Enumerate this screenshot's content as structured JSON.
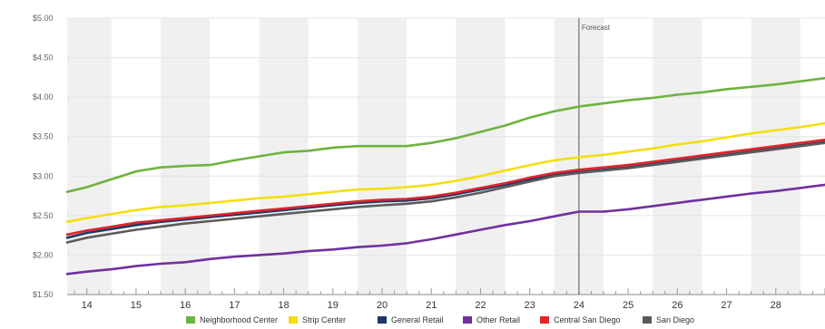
{
  "chart_data": {
    "type": "line",
    "title": "",
    "xlabel": "",
    "ylabel": "",
    "categories": [
      "14",
      "15",
      "16",
      "17",
      "18",
      "19",
      "20",
      "21",
      "22",
      "23",
      "24",
      "25",
      "26",
      "27",
      "28"
    ],
    "x_range": [
      13.6,
      29.0
    ],
    "ylim": [
      1.5,
      5.0
    ],
    "yticks": [
      "$1.50",
      "$2.00",
      "$2.50",
      "$3.00",
      "$3.50",
      "$4.00",
      "$4.50",
      "$5.00"
    ],
    "ytick_values": [
      1.5,
      2.0,
      2.5,
      3.0,
      3.5,
      4.0,
      4.5,
      5.0
    ],
    "grid": "alternating vertical bands",
    "legend_position": "bottom",
    "annotation": {
      "label": "Forecast",
      "x": 24
    },
    "x": [
      13.6,
      14,
      14.5,
      15,
      15.5,
      16,
      16.5,
      17,
      17.5,
      18,
      18.5,
      19,
      19.5,
      20,
      20.5,
      21,
      21.5,
      22,
      22.5,
      23,
      23.5,
      24,
      24.5,
      25,
      25.5,
      26,
      26.5,
      27,
      27.5,
      28,
      28.5,
      29
    ],
    "series": [
      {
        "name": "Neighborhood Center",
        "color": "#6db33f",
        "values": [
          2.8,
          2.86,
          2.96,
          3.06,
          3.11,
          3.13,
          3.14,
          3.2,
          3.25,
          3.3,
          3.32,
          3.36,
          3.38,
          3.38,
          3.38,
          3.42,
          3.48,
          3.56,
          3.64,
          3.74,
          3.82,
          3.88,
          3.92,
          3.96,
          3.99,
          4.03,
          4.06,
          4.1,
          4.13,
          4.16,
          4.2,
          4.24
        ]
      },
      {
        "name": "Strip Center",
        "color": "#f5de0c",
        "values": [
          2.42,
          2.47,
          2.52,
          2.57,
          2.61,
          2.63,
          2.66,
          2.69,
          2.72,
          2.74,
          2.77,
          2.8,
          2.83,
          2.84,
          2.86,
          2.89,
          2.94,
          3.0,
          3.07,
          3.14,
          3.2,
          3.24,
          3.27,
          3.31,
          3.35,
          3.4,
          3.44,
          3.49,
          3.54,
          3.58,
          3.62,
          3.67
        ]
      },
      {
        "name": "General Retail",
        "color": "#1f3864",
        "values": [
          2.22,
          2.28,
          2.33,
          2.38,
          2.42,
          2.45,
          2.48,
          2.51,
          2.54,
          2.57,
          2.6,
          2.63,
          2.66,
          2.68,
          2.69,
          2.72,
          2.77,
          2.83,
          2.89,
          2.96,
          3.02,
          3.05,
          3.08,
          3.11,
          3.15,
          3.19,
          3.23,
          3.27,
          3.31,
          3.35,
          3.39,
          3.43
        ]
      },
      {
        "name": "Other Retail",
        "color": "#7030a0",
        "values": [
          1.76,
          1.79,
          1.82,
          1.86,
          1.89,
          1.91,
          1.95,
          1.98,
          2.0,
          2.02,
          2.05,
          2.07,
          2.1,
          2.12,
          2.15,
          2.2,
          2.26,
          2.32,
          2.38,
          2.43,
          2.49,
          2.55,
          2.55,
          2.58,
          2.62,
          2.66,
          2.7,
          2.74,
          2.78,
          2.81,
          2.85,
          2.89
        ]
      },
      {
        "name": "Central San Diego",
        "color": "#e0242b",
        "values": [
          2.26,
          2.31,
          2.36,
          2.41,
          2.44,
          2.47,
          2.5,
          2.53,
          2.56,
          2.59,
          2.62,
          2.65,
          2.68,
          2.7,
          2.71,
          2.74,
          2.79,
          2.85,
          2.91,
          2.98,
          3.04,
          3.08,
          3.11,
          3.14,
          3.18,
          3.22,
          3.26,
          3.3,
          3.34,
          3.38,
          3.42,
          3.46
        ]
      },
      {
        "name": "San Diego",
        "color": "#5b5b5b",
        "values": [
          2.16,
          2.22,
          2.27,
          2.32,
          2.36,
          2.4,
          2.43,
          2.46,
          2.49,
          2.52,
          2.55,
          2.58,
          2.61,
          2.63,
          2.65,
          2.68,
          2.73,
          2.79,
          2.86,
          2.93,
          3.0,
          3.04,
          3.07,
          3.1,
          3.14,
          3.18,
          3.22,
          3.26,
          3.3,
          3.34,
          3.38,
          3.42
        ]
      }
    ]
  }
}
